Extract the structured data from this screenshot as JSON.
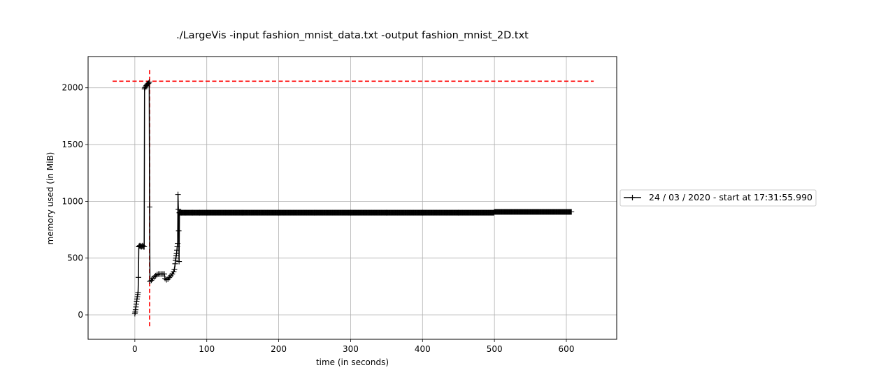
{
  "chart_data": {
    "type": "line",
    "title": "./LargeVis -input fashion_mnist_data.txt -output fashion_mnist_2D.txt",
    "xlabel": "time (in seconds)",
    "ylabel": "memory used (in MiB)",
    "xlim": [
      -65,
      670
    ],
    "ylim": [
      -215,
      2275
    ],
    "xticks": [
      0,
      100,
      200,
      300,
      400,
      500,
      600
    ],
    "yticks": [
      0,
      500,
      1000,
      1500,
      2000
    ],
    "grid": true,
    "legend_position": "right, outside plot",
    "colors": {
      "series": "#000000",
      "reference": "#ff0000",
      "grid": "#b0b0b0"
    },
    "series": [
      {
        "name": "24 / 03 / 2020 - start at 17:31:55.990",
        "marker": "+",
        "points": [
          [
            0,
            10
          ],
          [
            0.5,
            25
          ],
          [
            1,
            45
          ],
          [
            1.5,
            70
          ],
          [
            2,
            95
          ],
          [
            2.5,
            120
          ],
          [
            3,
            140
          ],
          [
            3.5,
            160
          ],
          [
            4,
            180
          ],
          [
            4.5,
            195
          ],
          [
            5,
            330
          ],
          [
            5.5,
            600
          ],
          [
            6,
            605
          ],
          [
            7,
            610
          ],
          [
            8,
            605
          ],
          [
            9,
            600
          ],
          [
            10,
            605
          ],
          [
            11,
            610
          ],
          [
            12,
            600
          ],
          [
            13,
            600
          ],
          [
            13.5,
            1990
          ],
          [
            14,
            2000
          ],
          [
            15,
            2010
          ],
          [
            16,
            2020
          ],
          [
            17,
            2030
          ],
          [
            18,
            2035
          ],
          [
            19,
            2040
          ],
          [
            20,
            2050
          ],
          [
            20.5,
            950
          ],
          [
            21,
            295
          ],
          [
            23,
            305
          ],
          [
            25,
            320
          ],
          [
            27,
            335
          ],
          [
            29,
            345
          ],
          [
            31,
            355
          ],
          [
            33,
            360
          ],
          [
            35,
            360
          ],
          [
            37,
            360
          ],
          [
            39,
            360
          ],
          [
            41,
            360
          ],
          [
            42,
            320
          ],
          [
            44,
            310
          ],
          [
            46,
            315
          ],
          [
            48,
            330
          ],
          [
            50,
            345
          ],
          [
            52,
            360
          ],
          [
            54,
            380
          ],
          [
            55,
            400
          ],
          [
            56,
            450
          ],
          [
            56.5,
            480
          ],
          [
            57,
            500
          ],
          [
            57.5,
            520
          ],
          [
            58,
            540
          ],
          [
            58.5,
            570
          ],
          [
            59,
            600
          ],
          [
            59.5,
            630
          ],
          [
            60,
            1060
          ],
          [
            60.5,
            930
          ],
          [
            61,
            740
          ],
          [
            61.5,
            470
          ],
          [
            62,
            900
          ],
          [
            65,
            900
          ],
          [
            70,
            900
          ],
          [
            80,
            900
          ],
          [
            90,
            900
          ],
          [
            100,
            900
          ],
          [
            150,
            900
          ],
          [
            200,
            900
          ],
          [
            250,
            900
          ],
          [
            300,
            900
          ],
          [
            350,
            900
          ],
          [
            400,
            900
          ],
          [
            450,
            900
          ],
          [
            499,
            900
          ],
          [
            500,
            907
          ],
          [
            550,
            907
          ],
          [
            600,
            907
          ],
          [
            607,
            907
          ]
        ]
      }
    ],
    "reference_lines": [
      {
        "orientation": "horizontal",
        "y": 2058,
        "x_from": -31,
        "x_to": 638
      },
      {
        "orientation": "vertical",
        "x": 20.5,
        "y_from": -100,
        "y_to": 2160
      }
    ]
  }
}
